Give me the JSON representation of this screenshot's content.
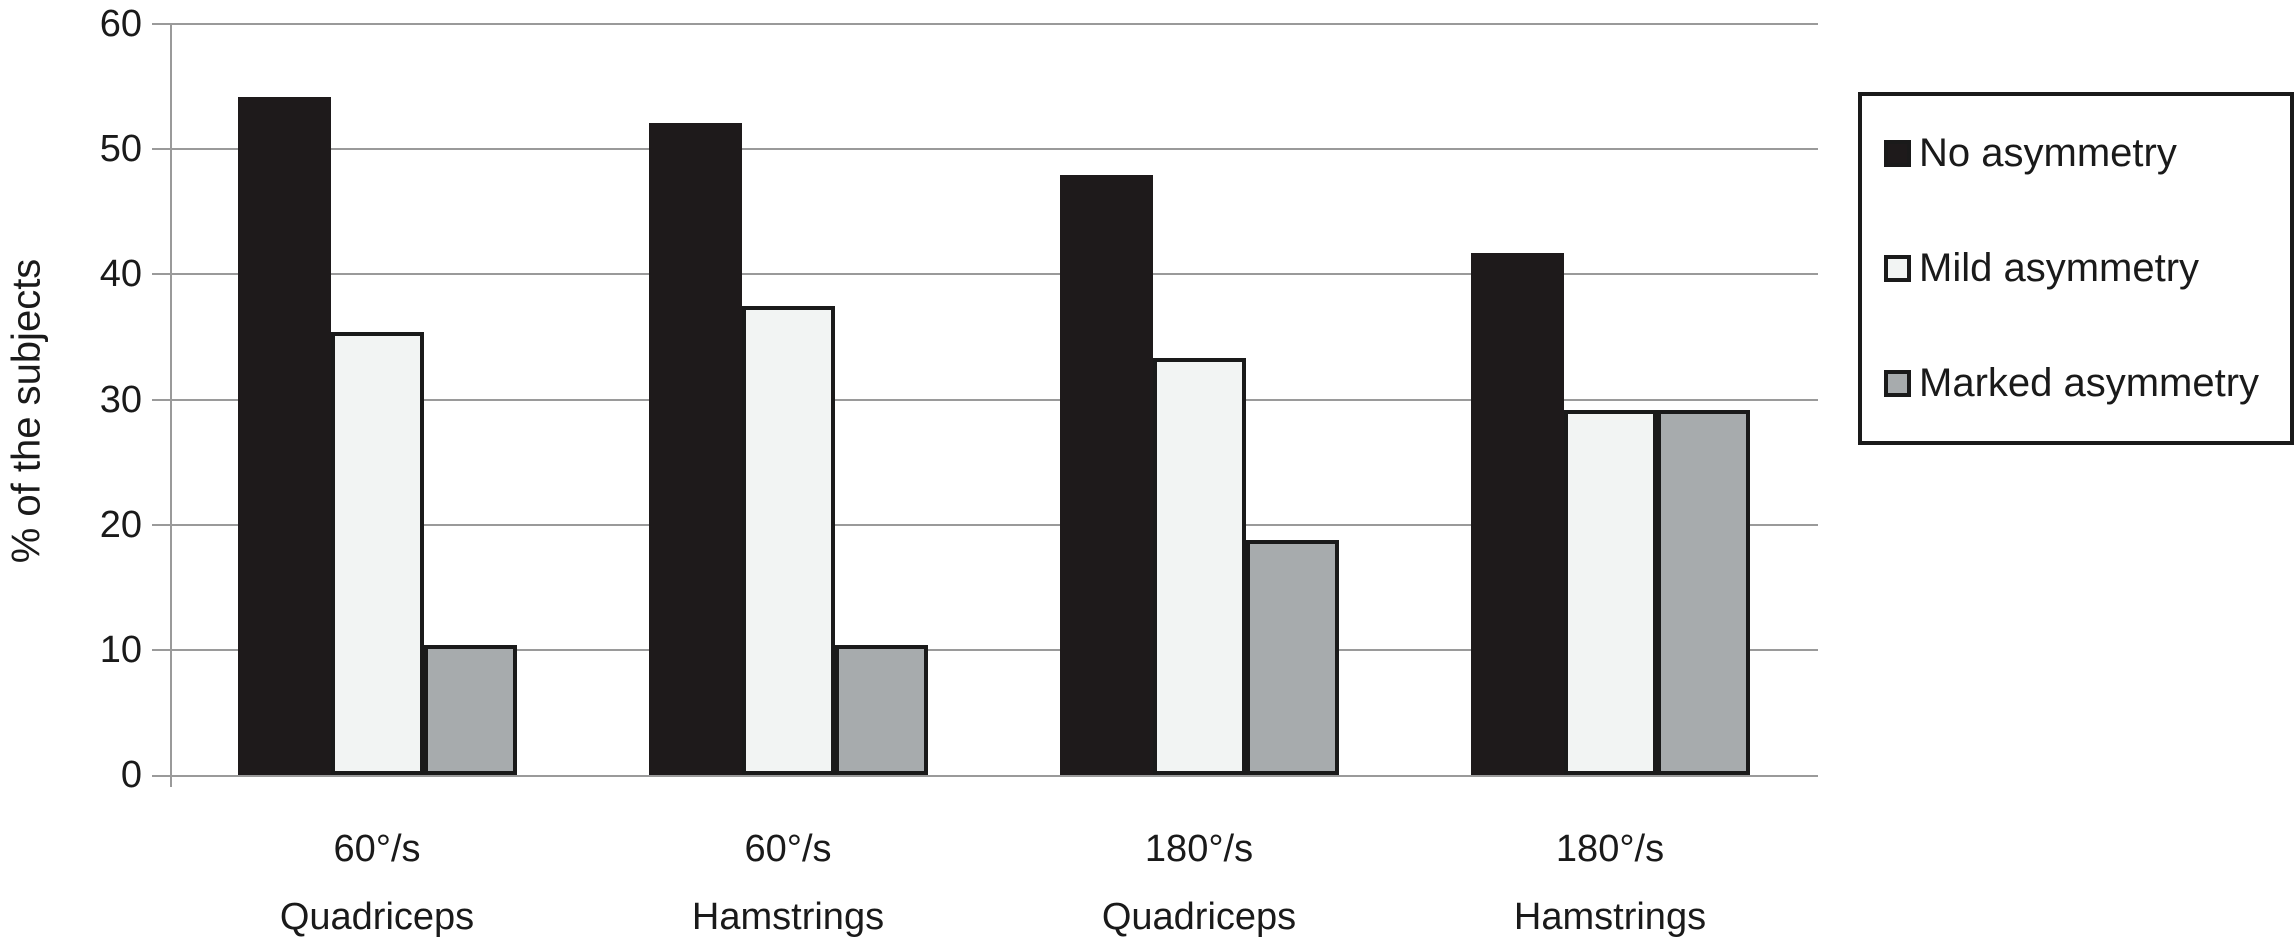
{
  "chart_data": {
    "type": "bar",
    "title": "",
    "xlabel": "",
    "ylabel": "% of the subjects",
    "ylim": [
      0,
      60
    ],
    "yticks": [
      0,
      10,
      20,
      30,
      40,
      50,
      60
    ],
    "grid": true,
    "legend_position": "right",
    "groups": [
      {
        "speed_label": "60°/s",
        "muscle_label": "Quadriceps"
      },
      {
        "speed_label": "60°/s",
        "muscle_label": "Hamstrings"
      },
      {
        "speed_label": "180°/s",
        "muscle_label": "Quadriceps"
      },
      {
        "speed_label": "180°/s",
        "muscle_label": "Hamstrings"
      }
    ],
    "series": [
      {
        "name": "No asymmetry",
        "fill": "#1e1a1b",
        "values": [
          54.2,
          52.1,
          47.9,
          41.7
        ]
      },
      {
        "name": "Mild asymmetry",
        "fill": "#f2f4f3",
        "values": [
          35.4,
          37.5,
          33.3,
          29.2
        ]
      },
      {
        "name": "Marked asymmetry",
        "fill": "#a7abad",
        "values": [
          10.4,
          10.4,
          18.8,
          29.2
        ]
      }
    ],
    "colors": {
      "bar_border": "#1a1a1a",
      "grid": "#9a9a9a",
      "text": "#1a1a1a",
      "background": "#ffffff"
    }
  }
}
